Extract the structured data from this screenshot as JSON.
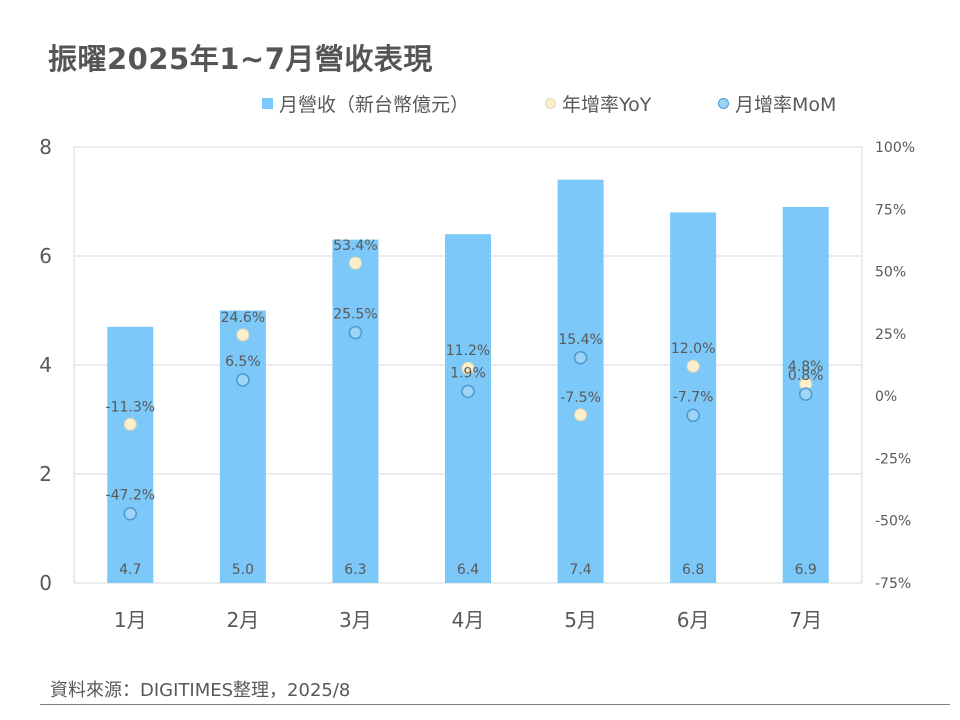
{
  "title": "振曜2025年1~7月營收表現",
  "legend": {
    "revenue": "月營收（新台幣億元）",
    "yoy": "年增率YoY",
    "mom": "月增率MoM"
  },
  "source": "資料來源：DIGITIMES整理，2025/8",
  "colors": {
    "bar": "#7CC8F8",
    "yoy_fill": "#FCEFCC",
    "yoy_stroke": "#E5D7B2",
    "mom_fill": "#9ED4F6",
    "mom_stroke": "#4B9BD0",
    "grid": "#D9D9D9",
    "text": "#595959"
  },
  "chart_data": {
    "type": "bar",
    "categories": [
      "1月",
      "2月",
      "3月",
      "4月",
      "5月",
      "6月",
      "7月"
    ],
    "series": [
      {
        "name": "月營收（新台幣億元）",
        "type": "bar",
        "axis": "left",
        "values": [
          4.7,
          5.0,
          6.3,
          6.4,
          7.4,
          6.8,
          6.9
        ],
        "labels": [
          "4.7",
          "5.0",
          "6.3",
          "6.4",
          "7.4",
          "6.8",
          "6.9"
        ]
      },
      {
        "name": "年增率YoY",
        "type": "scatter",
        "axis": "right",
        "values": [
          -11.3,
          24.6,
          53.4,
          11.2,
          -7.5,
          12.0,
          4.8
        ],
        "labels": [
          "-11.3%",
          "24.6%",
          "53.4%",
          "11.2%",
          "-7.5%",
          "12.0%",
          "4.8%"
        ]
      },
      {
        "name": "月增率MoM",
        "type": "scatter",
        "axis": "right",
        "values": [
          -47.2,
          6.5,
          25.5,
          1.9,
          15.4,
          -7.7,
          0.8
        ],
        "labels": [
          "-47.2%",
          "6.5%",
          "25.5%",
          "1.9%",
          "15.4%",
          "-7.7%",
          "0.8%"
        ]
      }
    ],
    "y_left": {
      "ylim": [
        0,
        8
      ],
      "ticks": [
        "0",
        "2",
        "4",
        "6",
        "8"
      ]
    },
    "y_right": {
      "ylim": [
        -75,
        100
      ],
      "ticks": [
        "-75%",
        "-50%",
        "-25%",
        "0%",
        "25%",
        "50%",
        "75%",
        "100%"
      ]
    },
    "grid": true,
    "legend_position": "top"
  }
}
